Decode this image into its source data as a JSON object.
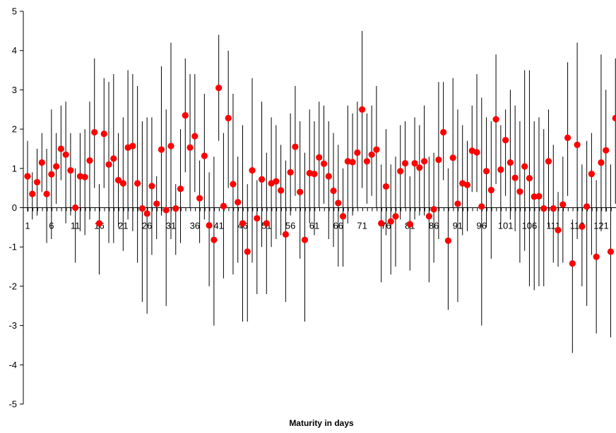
{
  "chart_data": {
    "type": "scatter",
    "title": "",
    "xlabel": "Maturity in days",
    "ylabel": "",
    "xlim": [
      1,
      124
    ],
    "ylim": [
      -5,
      5
    ],
    "y_ticks": [
      -5,
      -4,
      -3,
      -2,
      -1,
      0,
      1,
      2,
      3,
      4,
      5
    ],
    "x_tick_labels": [
      1,
      6,
      11,
      16,
      21,
      26,
      31,
      36,
      41,
      46,
      51,
      56,
      61,
      66,
      71,
      76,
      81,
      86,
      91,
      96,
      101,
      106,
      111,
      116,
      121
    ],
    "grid": false,
    "legend": "none",
    "colors": {
      "points": "#ff0000",
      "bars": "#000000",
      "axis": "#000000"
    },
    "series": [
      {
        "values": [
          0.8,
          0.35,
          0.65,
          1.15,
          0.35,
          0.85,
          1.05,
          1.5,
          1.35,
          0.95,
          0.0,
          0.8,
          0.78,
          1.2,
          1.92,
          -0.4,
          1.88,
          1.1,
          1.25,
          0.7,
          0.62,
          1.53,
          1.57,
          0.62,
          -0.02,
          -0.15,
          0.55,
          0.1,
          1.48,
          -0.06,
          1.57,
          -0.02,
          0.48,
          2.35,
          1.53,
          1.82,
          0.24,
          1.32,
          -0.45,
          -0.82,
          3.05,
          0.04,
          2.28,
          0.6,
          0.14,
          -0.4,
          -1.12,
          0.95,
          -0.27,
          0.72,
          -0.4,
          0.62,
          0.67,
          0.44,
          -0.68,
          0.9,
          1.55,
          0.4,
          -0.82,
          0.88,
          0.86,
          1.28,
          1.12,
          0.8,
          0.43,
          0.12,
          -0.22,
          1.18,
          1.16,
          1.4,
          2.5,
          1.18,
          1.35,
          1.48,
          -0.4,
          0.54,
          -0.35,
          -0.22,
          0.93,
          1.13,
          -0.42,
          1.13,
          1.02,
          1.18,
          -0.22,
          -0.04,
          1.22,
          1.92,
          -0.84,
          1.27,
          0.1,
          0.62,
          0.58,
          1.45,
          1.41,
          0.03,
          0.93,
          0.45,
          2.25,
          0.97,
          1.72,
          1.15,
          0.76,
          0.41,
          1.05,
          0.75,
          0.28,
          0.29,
          -0.02,
          1.18,
          -0.02,
          -0.57,
          0.08,
          1.78,
          -1.42,
          1.6,
          -0.48,
          0.03,
          0.86,
          -1.25,
          1.15,
          1.46,
          -1.12,
          2.28
        ],
        "low": [
          -0.1,
          -0.3,
          -0.2,
          0.4,
          -0.9,
          -0.8,
          0.1,
          0.7,
          -0.4,
          -0.2,
          -1.4,
          -0.6,
          -0.7,
          -0.3,
          0.5,
          -1.7,
          0.5,
          -0.9,
          -0.9,
          -0.5,
          -1.1,
          -0.3,
          -0.6,
          -1.4,
          -2.4,
          -2.7,
          -1.2,
          -0.8,
          -0.2,
          -2.5,
          -0.8,
          -1.2,
          -0.9,
          0.9,
          0.0,
          0.4,
          -0.9,
          -0.3,
          -2.0,
          -3.0,
          1.7,
          -1.8,
          0.5,
          -1.7,
          -1.4,
          -2.9,
          -2.9,
          -1.4,
          -2.2,
          -1.0,
          -2.2,
          -1.0,
          -0.8,
          -0.7,
          -2.4,
          -0.2,
          0.3,
          -1.3,
          -2.9,
          -0.4,
          -0.7,
          0.0,
          0.1,
          -0.8,
          -1.0,
          -1.5,
          -1.5,
          -0.4,
          -0.2,
          0.0,
          0.5,
          0.1,
          0.3,
          0.0,
          -1.9,
          -0.7,
          -1.7,
          -1.5,
          -0.3,
          0.0,
          -1.6,
          -0.3,
          -0.2,
          -0.2,
          -1.9,
          -1.4,
          -0.8,
          0.7,
          -2.6,
          0.0,
          -2.4,
          -0.7,
          -0.6,
          0.4,
          0.4,
          -3.0,
          -0.5,
          -1.3,
          0.6,
          -0.4,
          0.3,
          -0.3,
          -0.6,
          -1.4,
          -1.1,
          -2.0,
          -2.1,
          -2.0,
          -2.0,
          -0.5,
          -1.4,
          -1.5,
          -1.4,
          0.3,
          -3.7,
          -0.8,
          -2.0,
          -2.5,
          -1.2,
          -3.2,
          -0.6,
          -0.1,
          -3.3,
          0.1
        ],
        "high": [
          1.7,
          0.9,
          1.5,
          1.9,
          1.5,
          2.5,
          1.9,
          2.6,
          2.7,
          1.9,
          1.0,
          1.9,
          2.0,
          2.7,
          3.8,
          0.6,
          3.3,
          3.2,
          3.4,
          1.9,
          2.3,
          3.5,
          3.4,
          3.1,
          2.2,
          2.3,
          2.3,
          0.8,
          3.6,
          2.5,
          4.2,
          0.6,
          2.0,
          3.8,
          3.4,
          3.4,
          1.2,
          2.9,
          0.9,
          1.3,
          4.4,
          1.9,
          4.0,
          2.9,
          1.3,
          2.1,
          0.6,
          3.3,
          0.7,
          2.7,
          1.4,
          2.3,
          2.1,
          1.6,
          1.2,
          2.4,
          3.1,
          2.2,
          1.4,
          2.5,
          2.2,
          2.7,
          2.6,
          2.2,
          1.9,
          1.6,
          1.0,
          2.6,
          2.4,
          2.7,
          4.5,
          2.4,
          2.6,
          3.1,
          1.1,
          2.0,
          1.1,
          1.3,
          2.1,
          2.2,
          0.8,
          2.3,
          2.1,
          2.6,
          1.3,
          1.4,
          3.2,
          3.2,
          1.0,
          3.3,
          2.5,
          2.1,
          1.7,
          2.6,
          3.4,
          2.8,
          2.3,
          2.2,
          3.9,
          2.1,
          2.5,
          3.0,
          2.6,
          2.2,
          3.5,
          3.5,
          2.2,
          2.3,
          2.0,
          2.5,
          1.6,
          0.4,
          1.3,
          3.7,
          -0.3,
          4.2,
          1.1,
          1.7,
          1.9,
          0.7,
          3.9,
          3.0,
          1.1,
          3.8
        ]
      }
    ]
  }
}
